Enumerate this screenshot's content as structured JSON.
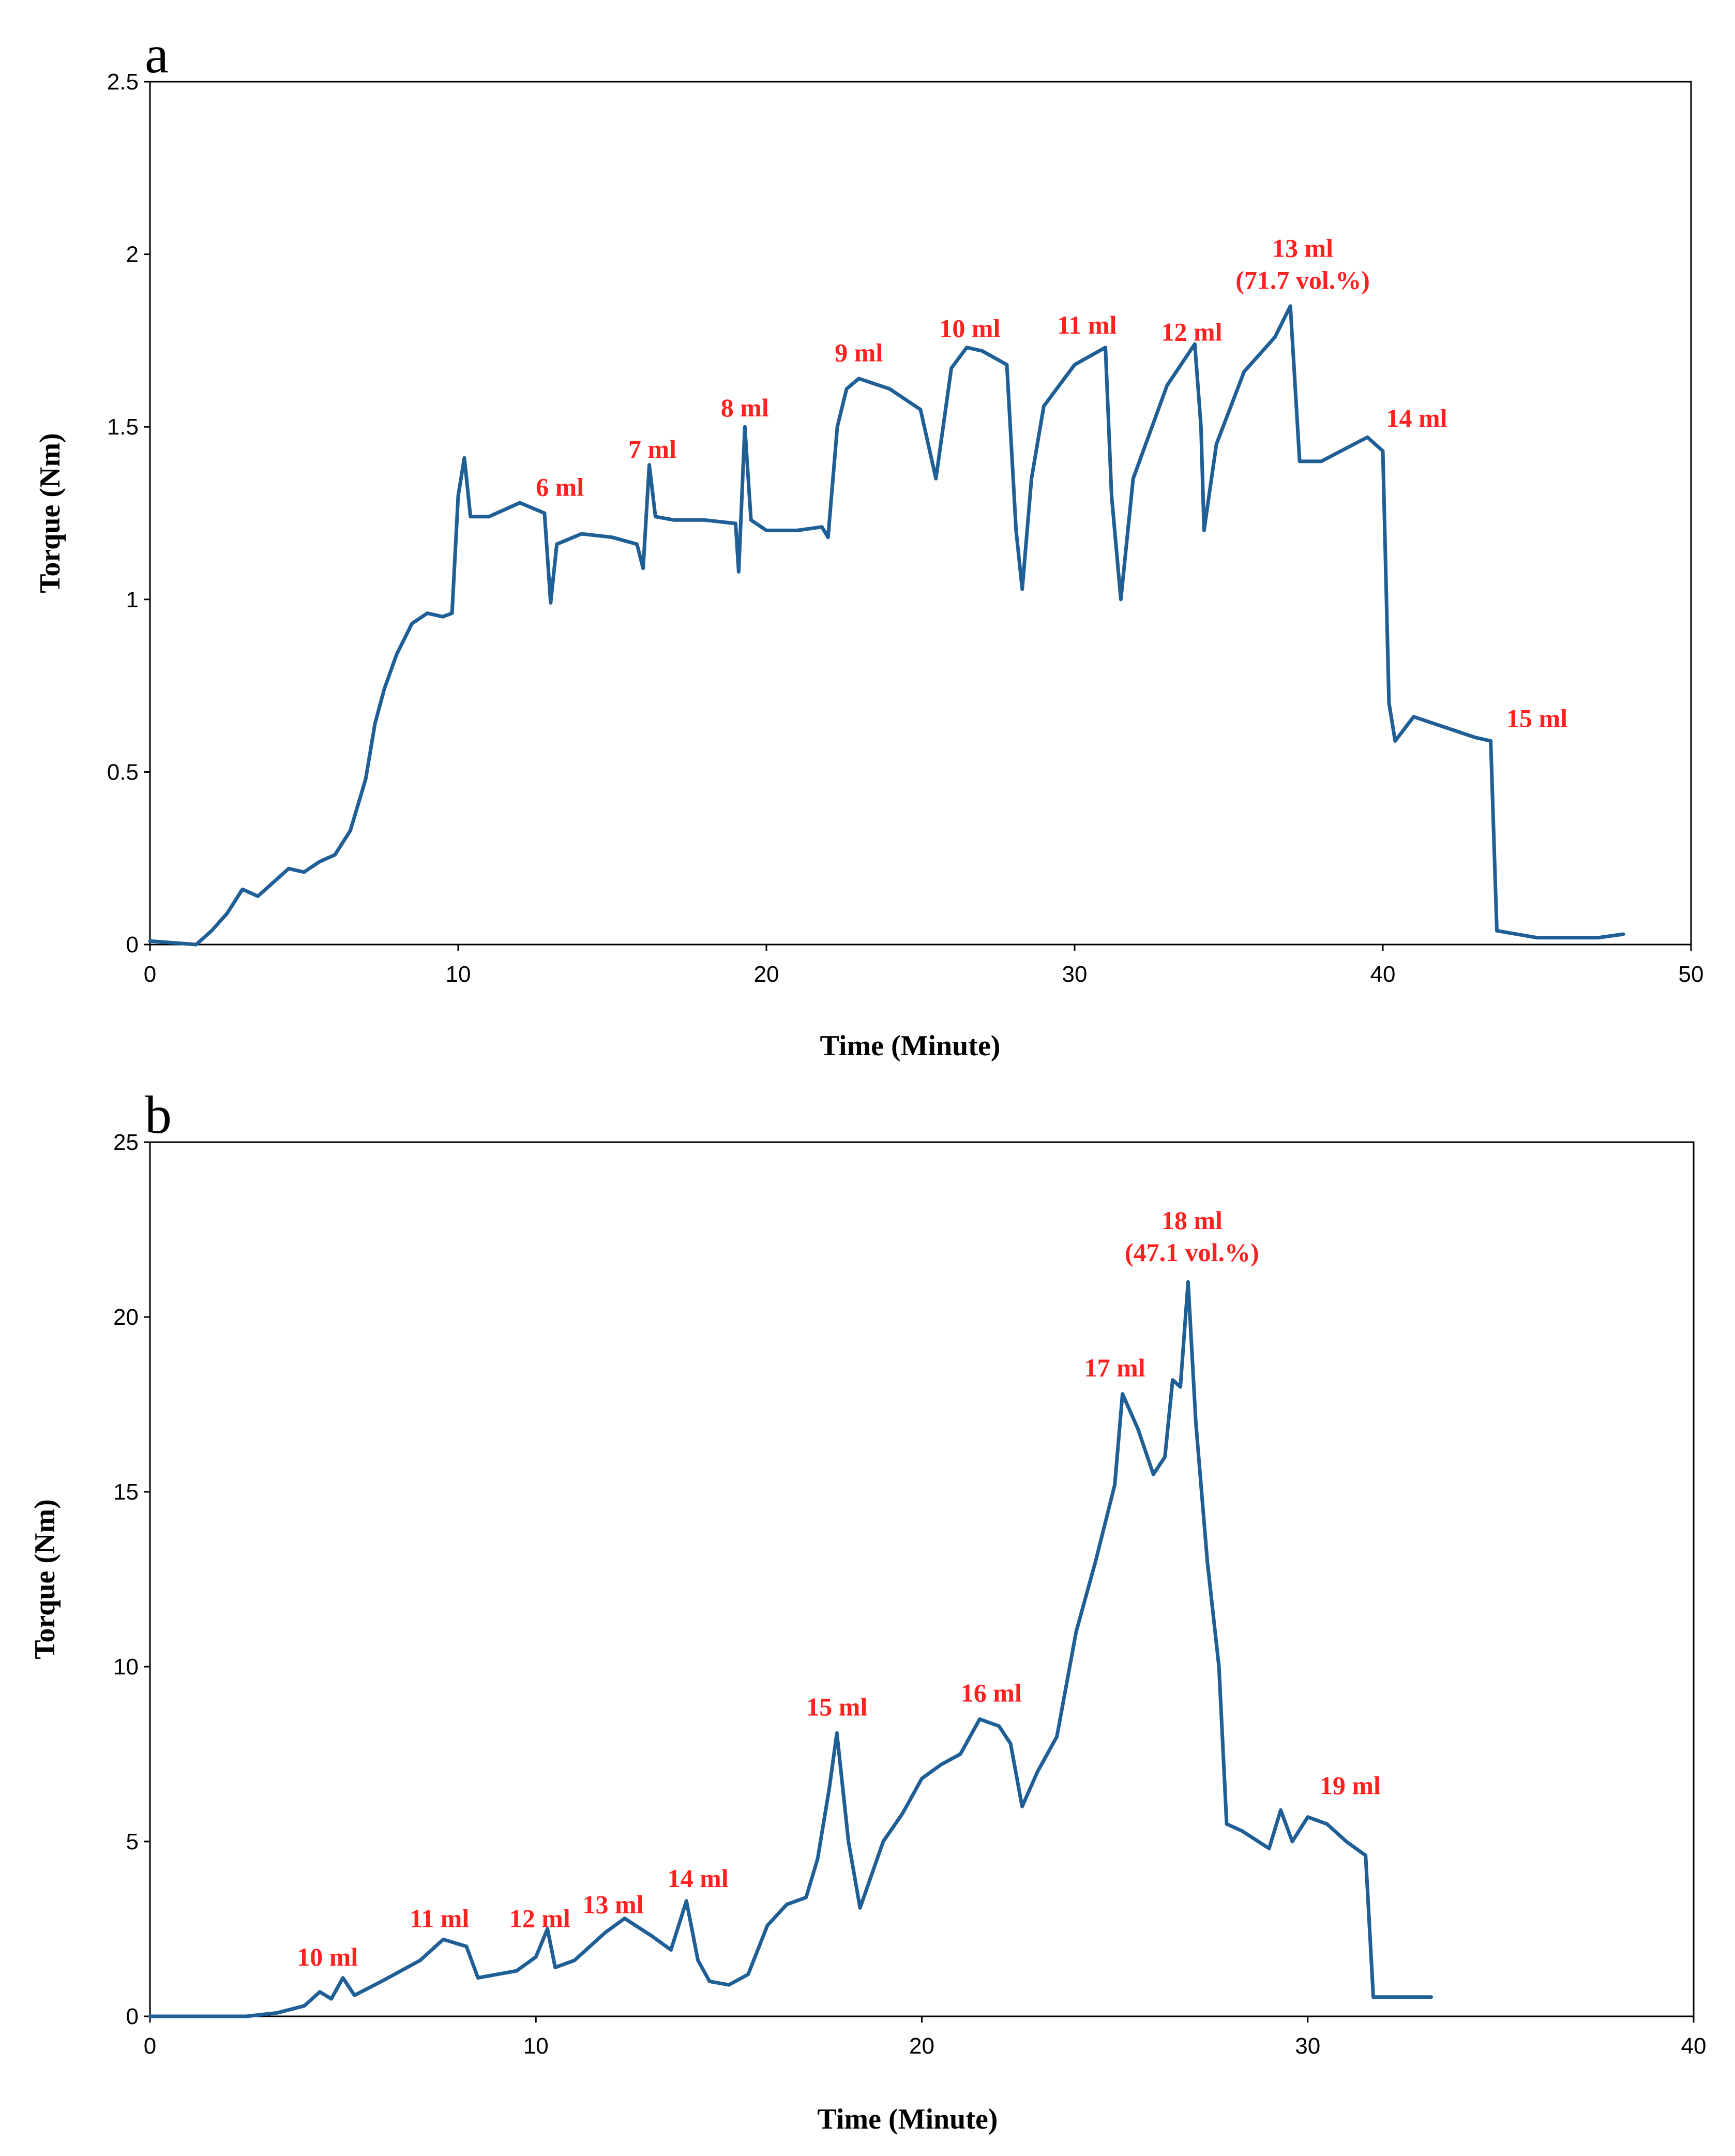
{
  "chart_data": [
    {
      "panel": "a",
      "type": "line",
      "xlabel": "Time (Minute)",
      "ylabel": "Torque (Nm)",
      "xlim": [
        0,
        50
      ],
      "ylim": [
        0,
        2.5
      ],
      "xticks": [
        0,
        10,
        20,
        30,
        40,
        50
      ],
      "yticks": [
        0,
        0.5,
        1,
        1.5,
        2,
        2.5
      ],
      "series": [
        {
          "name": "Torque",
          "color": "#1f5f96",
          "points": [
            [
              0,
              0.01
            ],
            [
              1.5,
              0.0
            ],
            [
              2,
              0.04
            ],
            [
              2.5,
              0.09
            ],
            [
              3,
              0.16
            ],
            [
              3.5,
              0.14
            ],
            [
              4,
              0.18
            ],
            [
              4.5,
              0.22
            ],
            [
              5,
              0.21
            ],
            [
              5.5,
              0.24
            ],
            [
              6,
              0.26
            ],
            [
              6.5,
              0.33
            ],
            [
              7,
              0.48
            ],
            [
              7.3,
              0.64
            ],
            [
              7.6,
              0.74
            ],
            [
              8,
              0.84
            ],
            [
              8.5,
              0.93
            ],
            [
              9,
              0.96
            ],
            [
              9.5,
              0.95
            ],
            [
              9.8,
              0.96
            ],
            [
              10,
              1.3
            ],
            [
              10.2,
              1.41
            ],
            [
              10.4,
              1.24
            ],
            [
              11,
              1.24
            ],
            [
              12,
              1.28
            ],
            [
              12.8,
              1.25
            ],
            [
              13,
              0.99
            ],
            [
              13.2,
              1.16
            ],
            [
              14,
              1.19
            ],
            [
              15,
              1.18
            ],
            [
              15.8,
              1.16
            ],
            [
              16,
              1.09
            ],
            [
              16.2,
              1.39
            ],
            [
              16.4,
              1.24
            ],
            [
              17,
              1.23
            ],
            [
              18,
              1.23
            ],
            [
              19,
              1.22
            ],
            [
              19.1,
              1.08
            ],
            [
              19.3,
              1.5
            ],
            [
              19.5,
              1.23
            ],
            [
              20,
              1.2
            ],
            [
              21,
              1.2
            ],
            [
              21.8,
              1.21
            ],
            [
              22,
              1.18
            ],
            [
              22.3,
              1.5
            ],
            [
              22.6,
              1.61
            ],
            [
              23,
              1.64
            ],
            [
              24,
              1.61
            ],
            [
              25,
              1.55
            ],
            [
              25.5,
              1.35
            ],
            [
              26,
              1.67
            ],
            [
              26.5,
              1.73
            ],
            [
              27,
              1.72
            ],
            [
              27.8,
              1.68
            ],
            [
              28.1,
              1.2
            ],
            [
              28.3,
              1.03
            ],
            [
              28.6,
              1.35
            ],
            [
              29,
              1.56
            ],
            [
              30,
              1.68
            ],
            [
              31,
              1.73
            ],
            [
              31.2,
              1.3
            ],
            [
              31.5,
              1.0
            ],
            [
              31.9,
              1.35
            ],
            [
              33,
              1.62
            ],
            [
              33.9,
              1.74
            ],
            [
              34.1,
              1.5
            ],
            [
              34.2,
              1.2
            ],
            [
              34.6,
              1.45
            ],
            [
              35.5,
              1.66
            ],
            [
              36.5,
              1.76
            ],
            [
              37,
              1.85
            ],
            [
              37.3,
              1.4
            ],
            [
              38,
              1.4
            ],
            [
              39.5,
              1.47
            ],
            [
              40,
              1.43
            ],
            [
              40.2,
              0.7
            ],
            [
              40.4,
              0.59
            ],
            [
              41,
              0.66
            ],
            [
              42,
              0.63
            ],
            [
              43,
              0.6
            ],
            [
              43.5,
              0.59
            ],
            [
              43.7,
              0.04
            ],
            [
              45,
              0.02
            ],
            [
              47,
              0.02
            ],
            [
              47.8,
              0.03
            ]
          ]
        }
      ],
      "annotations": [
        {
          "lines": [
            "6 ml"
          ],
          "x": 13.3,
          "y": 1.3
        },
        {
          "lines": [
            "7 ml"
          ],
          "x": 16.3,
          "y": 1.41
        },
        {
          "lines": [
            "8 ml"
          ],
          "x": 19.3,
          "y": 1.53
        },
        {
          "lines": [
            "9 ml"
          ],
          "x": 23.0,
          "y": 1.69
        },
        {
          "lines": [
            "10 ml"
          ],
          "x": 26.6,
          "y": 1.76
        },
        {
          "lines": [
            "11 ml"
          ],
          "x": 30.4,
          "y": 1.77
        },
        {
          "lines": [
            "12 ml"
          ],
          "x": 33.8,
          "y": 1.75
        },
        {
          "lines": [
            "13 ml",
            "(71.7 vol.%)"
          ],
          "x": 37.4,
          "y": 1.9
        },
        {
          "lines": [
            "14 ml"
          ],
          "x": 41.1,
          "y": 1.5
        },
        {
          "lines": [
            "15 ml"
          ],
          "x": 45.0,
          "y": 0.63
        }
      ]
    },
    {
      "panel": "b",
      "type": "line",
      "xlabel": "Time (Minute)",
      "ylabel": "Torque (Nm)",
      "xlim": [
        0,
        40
      ],
      "ylim": [
        0,
        25
      ],
      "xticks": [
        0,
        10,
        20,
        30,
        40
      ],
      "yticks": [
        0,
        5,
        10,
        15,
        20,
        25
      ],
      "series": [
        {
          "name": "Torque",
          "color": "#1f5f96",
          "points": [
            [
              0,
              0
            ],
            [
              2.5,
              0
            ],
            [
              3.3,
              0.1
            ],
            [
              4,
              0.3
            ],
            [
              4.4,
              0.7
            ],
            [
              4.7,
              0.5
            ],
            [
              5,
              1.1
            ],
            [
              5.3,
              0.6
            ],
            [
              6,
              1.0
            ],
            [
              7,
              1.6
            ],
            [
              7.6,
              2.2
            ],
            [
              8.2,
              2.0
            ],
            [
              8.5,
              1.1
            ],
            [
              9.5,
              1.3
            ],
            [
              10,
              1.7
            ],
            [
              10.3,
              2.5
            ],
            [
              10.5,
              1.4
            ],
            [
              11,
              1.6
            ],
            [
              11.8,
              2.4
            ],
            [
              12.3,
              2.8
            ],
            [
              13,
              2.3
            ],
            [
              13.5,
              1.9
            ],
            [
              13.9,
              3.3
            ],
            [
              14.2,
              1.6
            ],
            [
              14.5,
              1.0
            ],
            [
              15,
              0.9
            ],
            [
              15.5,
              1.2
            ],
            [
              16,
              2.6
            ],
            [
              16.5,
              3.2
            ],
            [
              17,
              3.4
            ],
            [
              17.3,
              4.5
            ],
            [
              17.6,
              6.5
            ],
            [
              17.8,
              8.1
            ],
            [
              18.1,
              5.0
            ],
            [
              18.4,
              3.1
            ],
            [
              19,
              5.0
            ],
            [
              19.5,
              5.8
            ],
            [
              20,
              6.8
            ],
            [
              20.5,
              7.2
            ],
            [
              21,
              7.5
            ],
            [
              21.5,
              8.5
            ],
            [
              22,
              8.3
            ],
            [
              22.3,
              7.8
            ],
            [
              22.6,
              6.0
            ],
            [
              23,
              7.0
            ],
            [
              23.5,
              8.0
            ],
            [
              24,
              11.0
            ],
            [
              24.5,
              13.0
            ],
            [
              25,
              15.2
            ],
            [
              25.2,
              17.8
            ],
            [
              25.6,
              16.8
            ],
            [
              26,
              15.5
            ],
            [
              26.3,
              16.0
            ],
            [
              26.5,
              18.2
            ],
            [
              26.7,
              18.0
            ],
            [
              26.9,
              21.0
            ],
            [
              27.1,
              17.0
            ],
            [
              27.4,
              13.0
            ],
            [
              27.7,
              10.0
            ],
            [
              27.9,
              5.5
            ],
            [
              28.3,
              5.3
            ],
            [
              29,
              4.8
            ],
            [
              29.3,
              5.9
            ],
            [
              29.6,
              5.0
            ],
            [
              30,
              5.7
            ],
            [
              30.5,
              5.5
            ],
            [
              31,
              5.0
            ],
            [
              31.5,
              4.6
            ],
            [
              31.7,
              0.55
            ],
            [
              33.2,
              0.55
            ]
          ]
        }
      ],
      "annotations": [
        {
          "lines": [
            "10 ml"
          ],
          "x": 4.6,
          "y": 1.45
        },
        {
          "lines": [
            "11 ml"
          ],
          "x": 7.5,
          "y": 2.55
        },
        {
          "lines": [
            "12 ml"
          ],
          "x": 10.1,
          "y": 2.55
        },
        {
          "lines": [
            "13 ml"
          ],
          "x": 12.0,
          "y": 2.95
        },
        {
          "lines": [
            "14 ml"
          ],
          "x": 14.2,
          "y": 3.7
        },
        {
          "lines": [
            "15 ml"
          ],
          "x": 17.8,
          "y": 8.6
        },
        {
          "lines": [
            "16 ml"
          ],
          "x": 21.8,
          "y": 9.0
        },
        {
          "lines": [
            "17 ml"
          ],
          "x": 25.0,
          "y": 18.3
        },
        {
          "lines": [
            "18 ml",
            "(47.1 vol.%)"
          ],
          "x": 27.0,
          "y": 21.6
        },
        {
          "lines": [
            "19 ml"
          ],
          "x": 31.1,
          "y": 6.35
        }
      ]
    }
  ]
}
